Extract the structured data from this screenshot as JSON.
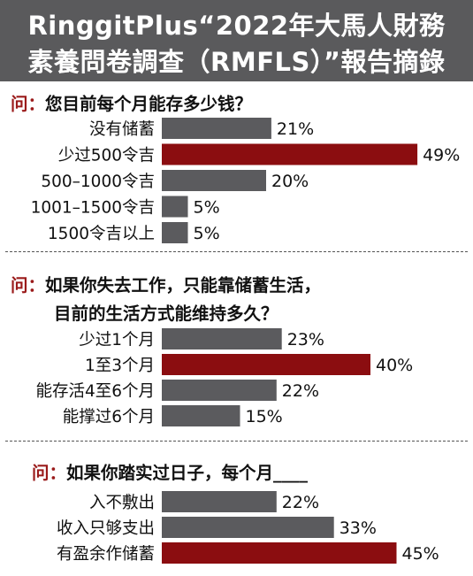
{
  "header": {
    "line1": "RinggitPlus“2022年大馬人財務",
    "line2": "素養問卷調查（RMFLS）”報告摘錄"
  },
  "colors": {
    "header_bg": "#5a5a5c",
    "bar_gray": "#5b5b5e",
    "bar_highlight": "#8b0d10",
    "marker": "#9a1a1a"
  },
  "chart_data": [
    {
      "type": "bar",
      "orientation": "horizontal",
      "question_marker": "问：",
      "question_lines": [
        "您目前每个月能存多少钱？"
      ],
      "categories": [
        "没有储蓄",
        "少过500令吉",
        "500–1000令吉",
        "1001–1500令吉",
        "1500令吉以上"
      ],
      "values": [
        21,
        49,
        20,
        5,
        5
      ],
      "value_labels": [
        "21%",
        "49%",
        "20%",
        "5%",
        "5%"
      ],
      "highlight_index": 1,
      "xlim": [
        0,
        100
      ]
    },
    {
      "type": "bar",
      "orientation": "horizontal",
      "question_marker": "问：",
      "question_lines": [
        "如果你失去工作，只能靠储蓄生活，",
        "目前的生活方式能维持多久？"
      ],
      "categories": [
        "少过1个月",
        "1至3个月",
        "能存活4至6个月",
        "能撑过6个月"
      ],
      "values": [
        23,
        40,
        22,
        15
      ],
      "value_labels": [
        "23%",
        "40%",
        "22%",
        "15%"
      ],
      "highlight_index": 1,
      "xlim": [
        0,
        100
      ]
    },
    {
      "type": "bar",
      "orientation": "horizontal",
      "question_marker": "问：",
      "question_lines": [
        "如果你踏实过日子，每个月____"
      ],
      "categories": [
        "入不敷出",
        "收入只够支出",
        "有盈余作储蓄"
      ],
      "values": [
        22,
        33,
        45
      ],
      "value_labels": [
        "22%",
        "33%",
        "45%"
      ],
      "highlight_index": 2,
      "xlim": [
        0,
        100
      ]
    }
  ]
}
